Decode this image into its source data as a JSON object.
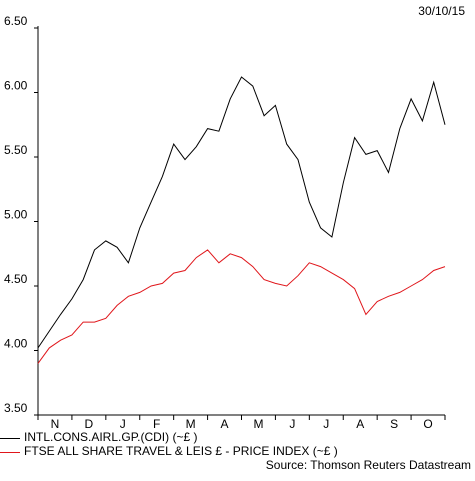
{
  "date_label": "30/10/15",
  "source": "Source: Thomson Reuters Datastream",
  "colors": {
    "series_1": "#000000",
    "series_2": "#e0161b"
  },
  "chart_data": {
    "type": "line",
    "ylim": [
      3.5,
      6.5
    ],
    "yticks": [
      3.5,
      4.0,
      4.5,
      5.0,
      5.5,
      6.0,
      6.5
    ],
    "ytick_labels": [
      "3.50",
      "4.00",
      "4.50",
      "5.00",
      "5.50",
      "6.00",
      "6.50"
    ],
    "months": [
      "N",
      "D",
      "J",
      "F",
      "M",
      "A",
      "M",
      "J",
      "J",
      "A",
      "S",
      "O"
    ],
    "legend_position": "bottom",
    "grid": false,
    "series": [
      {
        "name": "INTL.CONS.AIRL.GP.(CDI) (~£ )",
        "values": [
          4.02,
          4.15,
          4.28,
          4.4,
          4.55,
          4.78,
          4.85,
          4.8,
          4.68,
          4.95,
          5.15,
          5.35,
          5.6,
          5.48,
          5.58,
          5.72,
          5.7,
          5.95,
          6.12,
          6.05,
          5.82,
          5.9,
          5.6,
          5.48,
          5.15,
          4.95,
          4.88,
          5.3,
          5.65,
          5.52,
          5.55,
          5.38,
          5.72,
          5.95,
          5.78,
          6.08,
          5.75
        ]
      },
      {
        "name": "FTSE ALL SHARE TRAVEL & LEIS £ - PRICE INDEX (~£ )",
        "values": [
          3.9,
          4.02,
          4.08,
          4.12,
          4.22,
          4.22,
          4.25,
          4.35,
          4.42,
          4.45,
          4.5,
          4.52,
          4.6,
          4.62,
          4.72,
          4.78,
          4.68,
          4.75,
          4.72,
          4.65,
          4.55,
          4.52,
          4.5,
          4.58,
          4.68,
          4.65,
          4.6,
          4.55,
          4.48,
          4.28,
          4.38,
          4.42,
          4.45,
          4.5,
          4.55,
          4.62,
          4.65
        ]
      }
    ]
  }
}
